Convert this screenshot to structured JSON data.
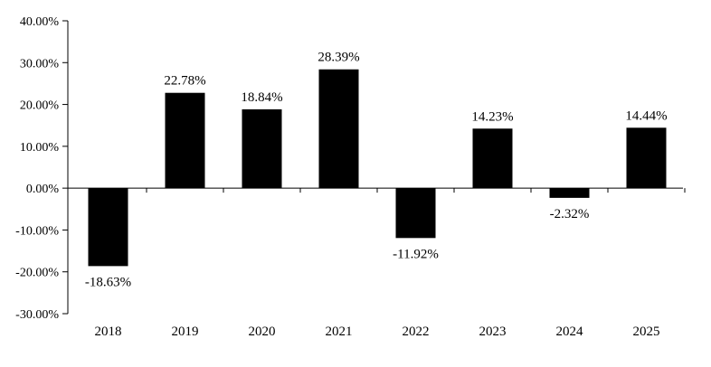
{
  "chart_data": {
    "type": "bar",
    "categories": [
      "2018",
      "2019",
      "2020",
      "2021",
      "2022",
      "2023",
      "2024",
      "2025"
    ],
    "values": [
      -18.63,
      22.78,
      18.84,
      28.39,
      -11.92,
      14.23,
      -2.32,
      14.44
    ],
    "data_labels": [
      "-18.63%",
      "22.78%",
      "18.84%",
      "28.39%",
      "-11.92%",
      "14.23%",
      "-2.32%",
      "14.44%"
    ],
    "ylim": [
      -30,
      40
    ],
    "yticks": [
      40,
      30,
      20,
      10,
      0,
      -10,
      -20,
      -30
    ],
    "ytick_labels": [
      "40.00%",
      "30.00%",
      "20.00%",
      "10.00%",
      "0.00%",
      "-10.00%",
      "-20.00%",
      "-30.00%"
    ],
    "title": "",
    "xlabel": "",
    "ylabel": "",
    "grid": false,
    "legend": "none",
    "bar_color": "#000000",
    "axis_color": "#000000"
  }
}
